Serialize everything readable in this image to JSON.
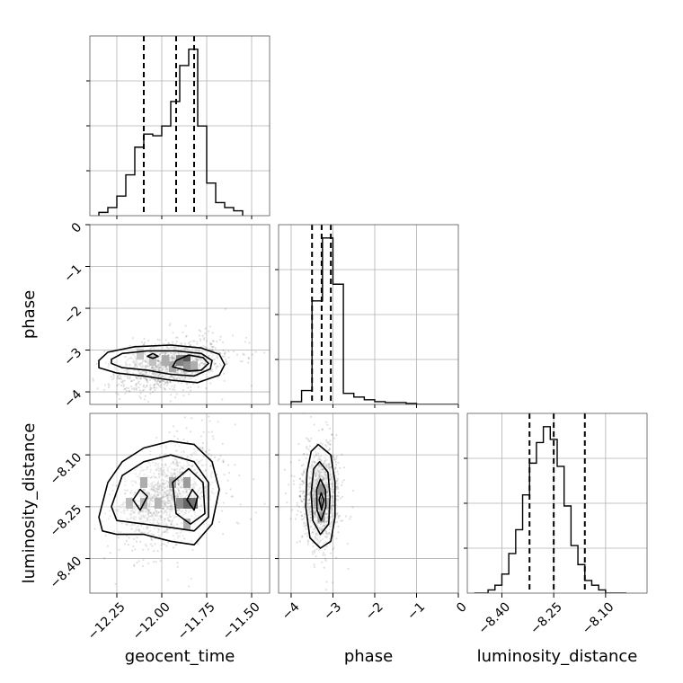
{
  "chart_data": {
    "type": "corner",
    "parameters": [
      "geocent_time",
      "phase",
      "luminosity_distance"
    ],
    "axis_labels": {
      "geocent_time": "geocent_time",
      "phase": "phase",
      "luminosity_distance": "luminosity_distance"
    },
    "ranges": {
      "geocent_time": [
        -12.4,
        -11.4
      ],
      "phase": [
        -4.3,
        0
      ],
      "luminosity_distance": [
        -8.5,
        -7.98
      ]
    },
    "ticks": {
      "geocent_time": {
        "values": [
          -12.25,
          -12.0,
          -11.75,
          -11.5
        ],
        "labels": [
          "−12.25",
          "−12.00",
          "−11.75",
          "−11.50"
        ]
      },
      "phase": {
        "values": [
          -4,
          -3,
          -2,
          -1,
          0
        ],
        "labels": [
          "−4",
          "−3",
          "−2",
          "−1",
          "0"
        ]
      },
      "luminosity_distance": {
        "values": [
          -8.4,
          -8.25,
          -8.1
        ],
        "labels": [
          "−8.40",
          "−8.25",
          "−8.10"
        ]
      }
    },
    "grid": true,
    "histograms": {
      "geocent_time": {
        "bin_edges": [
          -12.35,
          -12.3,
          -12.25,
          -12.2,
          -12.15,
          -12.1,
          -12.05,
          -12.0,
          -11.95,
          -11.9,
          -11.85,
          -11.8,
          -11.75,
          -11.7,
          -11.65,
          -11.6,
          -11.55
        ],
        "counts": [
          2,
          5,
          12,
          25,
          42,
          50,
          49,
          55,
          70,
          92,
          102,
          55,
          20,
          8,
          5,
          3
        ],
        "quantiles": [
          -12.1,
          -11.92,
          -11.82
        ]
      },
      "phase": {
        "bin_edges": [
          -4.0,
          -3.75,
          -3.5,
          -3.25,
          -3.0,
          -2.75,
          -2.5,
          -2.25,
          -2.0,
          -1.75,
          -1.5,
          -1.25,
          -1.0,
          -0.75,
          -0.5,
          -0.25,
          0.0
        ],
        "counts": [
          3,
          15,
          112,
          180,
          130,
          12,
          8,
          5,
          3,
          2,
          2,
          1,
          0,
          0,
          0,
          0
        ],
        "quantiles": [
          -3.5,
          -3.27,
          -3.05
        ]
      },
      "luminosity_distance": {
        "bin_edges": [
          -8.48,
          -8.46,
          -8.44,
          -8.42,
          -8.4,
          -8.38,
          -8.36,
          -8.34,
          -8.32,
          -8.3,
          -8.28,
          -8.26,
          -8.24,
          -8.22,
          -8.2,
          -8.18,
          -8.16,
          -8.14,
          -8.12,
          -8.1,
          -8.08,
          -8.06,
          -8.04
        ],
        "counts": [
          0,
          0,
          2,
          5,
          12,
          25,
          40,
          62,
          82,
          95,
          105,
          97,
          80,
          55,
          30,
          18,
          8,
          5,
          2,
          0,
          0,
          0
        ],
        "quantiles": [
          -8.32,
          -8.25,
          -8.16
        ]
      }
    },
    "scatter": [
      {
        "x": "geocent_time",
        "y": "phase",
        "center": [
          -11.95,
          -3.35
        ],
        "spread": [
          0.14,
          0.28
        ],
        "correlation": 0.35
      },
      {
        "x": "geocent_time",
        "y": "luminosity_distance",
        "center": [
          -11.97,
          -8.22
        ],
        "spread": [
          0.13,
          0.065
        ],
        "correlation": 0.45
      },
      {
        "x": "phase",
        "y": "luminosity_distance",
        "center": [
          -3.3,
          -8.22
        ],
        "spread": [
          0.2,
          0.065
        ],
        "correlation": 0.0
      }
    ],
    "contours": [
      {
        "x": "geocent_time",
        "y": "phase",
        "levels": [
          [
            [
              -12.35,
              -3.25
            ],
            [
              -12.3,
              -3.05
            ],
            [
              -12.15,
              -2.92
            ],
            [
              -11.95,
              -2.88
            ],
            [
              -11.78,
              -2.95
            ],
            [
              -11.68,
              -3.1
            ],
            [
              -11.65,
              -3.35
            ],
            [
              -11.68,
              -3.6
            ],
            [
              -11.8,
              -3.78
            ],
            [
              -11.95,
              -3.72
            ],
            [
              -12.1,
              -3.62
            ],
            [
              -12.25,
              -3.55
            ],
            [
              -12.35,
              -3.42
            ]
          ],
          [
            [
              -12.28,
              -3.22
            ],
            [
              -12.22,
              -3.08
            ],
            [
              -12.08,
              -3.02
            ],
            [
              -11.92,
              -3.02
            ],
            [
              -11.78,
              -3.08
            ],
            [
              -11.72,
              -3.25
            ],
            [
              -11.73,
              -3.45
            ],
            [
              -11.82,
              -3.62
            ],
            [
              -11.95,
              -3.58
            ],
            [
              -12.08,
              -3.48
            ],
            [
              -12.22,
              -3.42
            ],
            [
              -12.28,
              -3.32
            ]
          ],
          [
            [
              -11.92,
              -3.25
            ],
            [
              -11.85,
              -3.12
            ],
            [
              -11.77,
              -3.18
            ],
            [
              -11.74,
              -3.32
            ],
            [
              -11.78,
              -3.48
            ],
            [
              -11.85,
              -3.5
            ],
            [
              -11.94,
              -3.4
            ]
          ],
          [
            [
              -12.08,
              -3.15
            ],
            [
              -12.05,
              -3.08
            ],
            [
              -12.02,
              -3.15
            ],
            [
              -12.05,
              -3.2
            ]
          ]
        ]
      },
      {
        "x": "geocent_time",
        "y": "luminosity_distance",
        "levels": [
          [
            [
              -12.35,
              -8.28
            ],
            [
              -12.3,
              -8.18
            ],
            [
              -12.22,
              -8.12
            ],
            [
              -12.1,
              -8.08
            ],
            [
              -11.95,
              -8.06
            ],
            [
              -11.82,
              -8.07
            ],
            [
              -11.72,
              -8.12
            ],
            [
              -11.68,
              -8.2
            ],
            [
              -11.72,
              -8.3
            ],
            [
              -11.82,
              -8.36
            ],
            [
              -11.95,
              -8.35
            ],
            [
              -12.1,
              -8.33
            ],
            [
              -12.25,
              -8.33
            ],
            [
              -12.33,
              -8.32
            ]
          ],
          [
            [
              -12.28,
              -8.25
            ],
            [
              -12.22,
              -8.16
            ],
            [
              -12.1,
              -8.12
            ],
            [
              -11.95,
              -8.1
            ],
            [
              -11.82,
              -8.12
            ],
            [
              -11.74,
              -8.18
            ],
            [
              -11.74,
              -8.28
            ],
            [
              -11.82,
              -8.32
            ],
            [
              -11.95,
              -8.31
            ],
            [
              -12.1,
              -8.3
            ],
            [
              -12.25,
              -8.29
            ]
          ],
          [
            [
              -11.94,
              -8.18
            ],
            [
              -11.85,
              -8.14
            ],
            [
              -11.77,
              -8.18
            ],
            [
              -11.76,
              -8.27
            ],
            [
              -11.84,
              -8.3
            ],
            [
              -11.92,
              -8.27
            ]
          ],
          [
            [
              -12.12,
              -8.2
            ],
            [
              -12.08,
              -8.22
            ],
            [
              -12.12,
              -8.26
            ],
            [
              -12.16,
              -8.23
            ]
          ],
          [
            [
              -11.83,
              -8.2
            ],
            [
              -11.8,
              -8.22
            ],
            [
              -11.82,
              -8.26
            ],
            [
              -11.86,
              -8.23
            ]
          ]
        ]
      },
      {
        "x": "phase",
        "y": "luminosity_distance",
        "levels": [
          [
            [
              -3.35,
              -8.07
            ],
            [
              -3.05,
              -8.1
            ],
            [
              -2.95,
              -8.18
            ],
            [
              -2.95,
              -8.28
            ],
            [
              -3.05,
              -8.35
            ],
            [
              -3.3,
              -8.37
            ],
            [
              -3.55,
              -8.34
            ],
            [
              -3.65,
              -8.25
            ],
            [
              -3.62,
              -8.15
            ],
            [
              -3.52,
              -8.09
            ]
          ],
          [
            [
              -3.32,
              -8.12
            ],
            [
              -3.12,
              -8.15
            ],
            [
              -3.07,
              -8.22
            ],
            [
              -3.1,
              -8.3
            ],
            [
              -3.3,
              -8.33
            ],
            [
              -3.48,
              -8.29
            ],
            [
              -3.52,
              -8.21
            ],
            [
              -3.46,
              -8.14
            ]
          ],
          [
            [
              -3.3,
              -8.17
            ],
            [
              -3.18,
              -8.2
            ],
            [
              -3.17,
              -8.25
            ],
            [
              -3.28,
              -8.29
            ],
            [
              -3.38,
              -8.26
            ],
            [
              -3.39,
              -8.2
            ]
          ],
          [
            [
              -3.28,
              -8.21
            ],
            [
              -3.22,
              -8.23
            ],
            [
              -3.27,
              -8.26
            ],
            [
              -3.33,
              -8.23
            ]
          ]
        ]
      }
    ],
    "heatmap_cells": [
      {
        "x": "geocent_time",
        "y": "phase",
        "cells": [
          [
            -11.86,
            -3.25,
            1.0
          ],
          [
            -11.9,
            -3.25,
            0.7
          ],
          [
            -11.86,
            -3.4,
            0.55
          ],
          [
            -11.94,
            -3.4,
            0.4
          ],
          [
            -11.82,
            -3.4,
            0.35
          ],
          [
            -11.98,
            -3.25,
            0.35
          ],
          [
            -12.05,
            -3.25,
            0.2
          ],
          [
            -12.12,
            -3.1,
            0.15
          ]
        ]
      },
      {
        "x": "geocent_time",
        "y": "luminosity_distance",
        "cells": [
          [
            -11.86,
            -8.18,
            0.5
          ],
          [
            -11.86,
            -8.24,
            0.9
          ],
          [
            -11.82,
            -8.24,
            0.8
          ],
          [
            -11.9,
            -8.24,
            0.6
          ],
          [
            -12.1,
            -8.18,
            0.35
          ],
          [
            -12.1,
            -8.24,
            0.3
          ],
          [
            -12.02,
            -8.24,
            0.3
          ],
          [
            -11.94,
            -8.18,
            0.4
          ],
          [
            -12.18,
            -8.24,
            0.25
          ],
          [
            -11.86,
            -8.3,
            0.35
          ]
        ]
      },
      {
        "x": "phase",
        "y": "luminosity_distance",
        "cells": [
          [
            -3.28,
            -8.24,
            1.0
          ],
          [
            -3.28,
            -8.2,
            0.6
          ],
          [
            -3.28,
            -8.28,
            0.5
          ],
          [
            -3.38,
            -8.24,
            0.3
          ],
          [
            -3.18,
            -8.24,
            0.3
          ]
        ]
      }
    ]
  }
}
